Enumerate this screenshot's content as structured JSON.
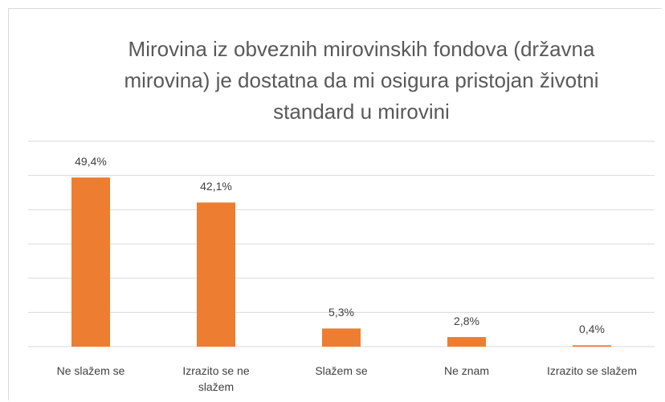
{
  "chart_data": {
    "type": "bar",
    "title": "Mirovina iz obveznih mirovinskih fondova (državna mirovina) je dostatna da mi osigura pristojan životni standard u mirovini",
    "categories": [
      "Ne slažem se",
      "Izrazito se ne slažem",
      "Slažem se",
      "Ne znam",
      "Izrazito se slažem"
    ],
    "values": [
      49.4,
      42.1,
      5.3,
      2.8,
      0.4
    ],
    "value_labels": [
      "49,4%",
      "42,1%",
      "5,3%",
      "2,8%",
      "0,4%"
    ],
    "color": "#ed7d31",
    "ylim": [
      0,
      60
    ],
    "yticks": [
      0,
      10,
      20,
      30,
      40,
      50,
      60
    ],
    "grid": true
  }
}
